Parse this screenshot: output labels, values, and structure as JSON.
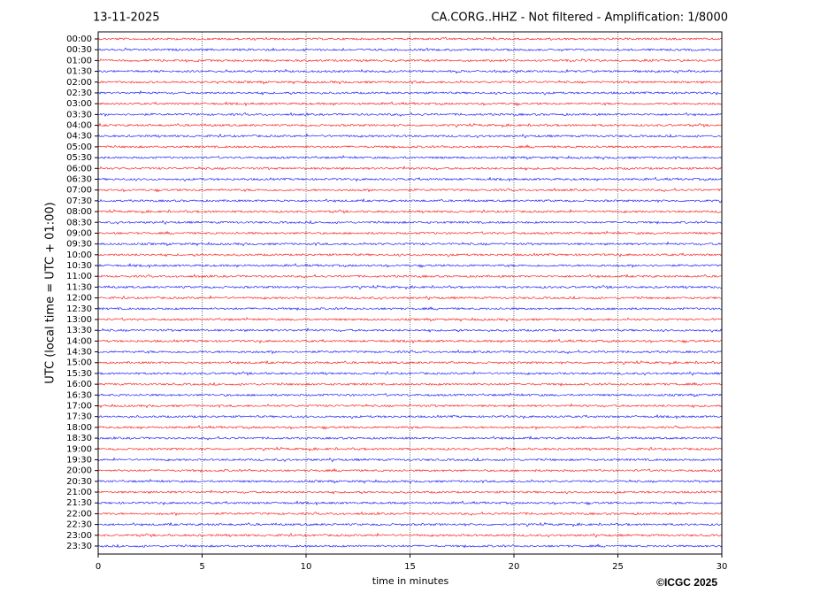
{
  "chart_data": {
    "type": "helicorder",
    "title_left": "13-11-2025",
    "title": "CA.CORG..HHZ - Not filtered - Amplification: 1/8000",
    "xlabel": "time in minutes",
    "ylabel": "UTC (local time = UTC + 01:00)",
    "credit": "©ICGC 2025",
    "categories": [
      "00:00",
      "00:30",
      "01:00",
      "01:30",
      "02:00",
      "02:30",
      "03:00",
      "03:30",
      "04:00",
      "04:30",
      "05:00",
      "05:30",
      "06:00",
      "06:30",
      "07:00",
      "07:30",
      "08:00",
      "08:30",
      "09:00",
      "09:30",
      "10:00",
      "10:30",
      "11:00",
      "11:30",
      "12:00",
      "12:30",
      "13:00",
      "13:30",
      "14:00",
      "14:30",
      "15:00",
      "15:30",
      "16:00",
      "16:30",
      "17:00",
      "17:30",
      "18:00",
      "18:30",
      "19:00",
      "19:30",
      "20:00",
      "20:30",
      "21:00",
      "21:30",
      "22:00",
      "22:30",
      "23:00",
      "23:30"
    ],
    "colors": [
      "#ff0000",
      "#0000ff"
    ],
    "xlim": [
      0,
      30
    ],
    "xticks": [
      0,
      5,
      10,
      15,
      20,
      25,
      30
    ],
    "grid": true
  }
}
